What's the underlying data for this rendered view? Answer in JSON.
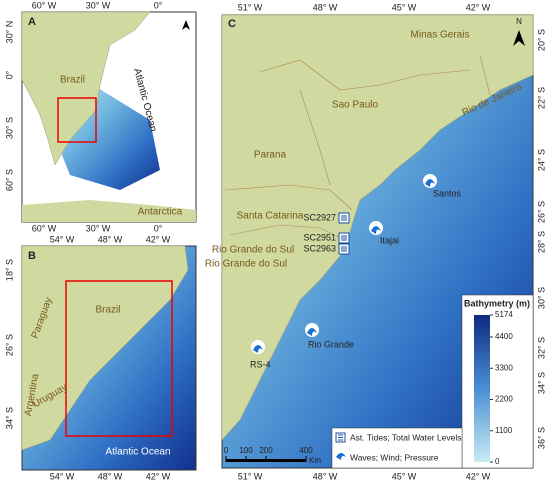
{
  "panel_a": {
    "label": "A",
    "lon_ticks": [
      "60° W",
      "30° W",
      "0°"
    ],
    "lat_ticks": [
      "30° N",
      "0°",
      "30° S",
      "60° S"
    ],
    "places": [
      "Brazil",
      "Atlantic Ocean",
      "Antarctica"
    ]
  },
  "panel_b": {
    "label": "B",
    "lon_ticks": [
      "54° W",
      "48° W",
      "42° W"
    ],
    "lat_ticks": [
      "18° S",
      "26° S",
      "34° S"
    ],
    "places": [
      "Brazil",
      "Paraguay",
      "Argentina",
      "Uruguay",
      "Atlantic Ocean"
    ]
  },
  "panel_c": {
    "label": "C",
    "north": "N",
    "lon_ticks": [
      "51° W",
      "48° W",
      "45° W",
      "42° W"
    ],
    "lat_ticks": [
      "20° S",
      "22° S",
      "24° S",
      "26° S",
      "28° S",
      "30° S",
      "32° S",
      "34° S",
      "36° S"
    ],
    "states": [
      "Minas Gerais",
      "Sao Paulo",
      "Rio de Janeiro",
      "Parana",
      "Santa Catarina",
      "Rio Grande do Sul"
    ],
    "stations": [
      "SC2927",
      "SC2951",
      "SC2963",
      "Itajai",
      "Santos",
      "Rio Grande",
      "RS-4"
    ],
    "colorbar": {
      "title": "Bathymetry (m)",
      "ticks": [
        5174,
        4400,
        3300,
        2200,
        1100,
        0
      ]
    },
    "scale": {
      "ticks": [
        0,
        100,
        200,
        400
      ],
      "unit": "Km"
    },
    "legend": [
      "Ast. Tides; Total Water Levels",
      "Waves; Wind; Pressure"
    ]
  }
}
